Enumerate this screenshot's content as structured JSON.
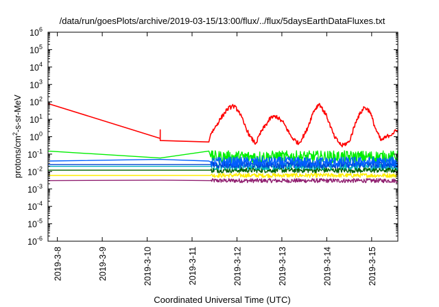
{
  "chart_data": {
    "type": "line",
    "title": "/data/run/goesPlots/archive/2019-03-15/13:00/flux/../flux/5daysEarthDataFluxes.txt",
    "xlabel": "Coordinated Universal Time (UTC)",
    "ylabel_prefix": "protons/cm",
    "ylabel_sup": "2",
    "ylabel_suffix": "-s-sr-MeV",
    "y_scale": "log",
    "x_range_days": [
      "2019-03-07 19:00",
      "2019-03-15 14:00"
    ],
    "ylim": [
      1e-06,
      1000000.0
    ],
    "grid": false,
    "legend": "none",
    "x_ticks": [
      "2019-3-8",
      "2019-3-9",
      "2019-3-10",
      "2019-3-11",
      "2019-3-12",
      "2019-3-13",
      "2019-3-14",
      "2019-3-15"
    ],
    "y_ticks": [
      {
        "base": "10",
        "exp": "-6"
      },
      {
        "base": "10",
        "exp": "-5"
      },
      {
        "base": "10",
        "exp": "-4"
      },
      {
        "base": "10",
        "exp": "-3"
      },
      {
        "base": "10",
        "exp": "-2"
      },
      {
        "base": "10",
        "exp": "-1"
      },
      {
        "base": "10",
        "exp": "0"
      },
      {
        "base": "10",
        "exp": "1"
      },
      {
        "base": "10",
        "exp": "2"
      },
      {
        "base": "10",
        "exp": "3"
      },
      {
        "base": "10",
        "exp": "4"
      },
      {
        "base": "10",
        "exp": "5"
      },
      {
        "base": "10",
        "exp": "6"
      }
    ],
    "series": [
      {
        "color": "#ff0000",
        "noise": 0.12,
        "points": [
          [
            "2019-03-07 19:00",
            80
          ],
          [
            "2019-03-10 07:00",
            0.8
          ],
          [
            "2019-03-10 07:00",
            2.5
          ],
          [
            "2019-03-10 07:00",
            0.6
          ],
          [
            "2019-03-11 09:00",
            0.5
          ],
          [
            "2019-03-11 10:00",
            1.5
          ],
          [
            "2019-03-11 12:00",
            3
          ],
          [
            "2019-03-11 15:00",
            10
          ],
          [
            "2019-03-11 19:00",
            40
          ],
          [
            "2019-03-11 22:00",
            60
          ],
          [
            "2019-03-12 01:00",
            30
          ],
          [
            "2019-03-12 04:00",
            5
          ],
          [
            "2019-03-12 07:00",
            1
          ],
          [
            "2019-03-12 10:00",
            0.4
          ],
          [
            "2019-03-12 13:00",
            2
          ],
          [
            "2019-03-12 18:00",
            12
          ],
          [
            "2019-03-12 21:00",
            15
          ],
          [
            "2019-03-13 01:00",
            6
          ],
          [
            "2019-03-13 05:00",
            1
          ],
          [
            "2019-03-13 09:00",
            0.4
          ],
          [
            "2019-03-13 13:00",
            2
          ],
          [
            "2019-03-13 17:00",
            30
          ],
          [
            "2019-03-13 20:00",
            80
          ],
          [
            "2019-03-14 00:00",
            15
          ],
          [
            "2019-03-14 04:00",
            1
          ],
          [
            "2019-03-14 08:00",
            0.3
          ],
          [
            "2019-03-14 12:00",
            0.5
          ],
          [
            "2019-03-14 16:00",
            10
          ],
          [
            "2019-03-14 20:00",
            50
          ],
          [
            "2019-03-14 23:00",
            30
          ],
          [
            "2019-03-15 02:00",
            3
          ],
          [
            "2019-03-15 05:00",
            0.6
          ],
          [
            "2019-03-15 08:00",
            1
          ],
          [
            "2019-03-15 11:00",
            1.5
          ],
          [
            "2019-03-15 14:00",
            2.5
          ]
        ]
      },
      {
        "color": "#00ee00",
        "noise": 0.35,
        "points": [
          [
            "2019-03-07 19:00",
            0.15
          ],
          [
            "2019-03-10 07:00",
            0.06
          ],
          [
            "2019-03-11 09:00",
            0.15
          ],
          [
            "2019-03-11 10:00",
            0.07
          ],
          [
            "2019-03-15 14:00",
            0.07
          ]
        ]
      },
      {
        "color": "#0060ff",
        "noise": 0.3,
        "points": [
          [
            "2019-03-07 19:00",
            0.04
          ],
          [
            "2019-03-10 07:00",
            0.05
          ],
          [
            "2019-03-11 09:00",
            0.04
          ],
          [
            "2019-03-11 10:00",
            0.035
          ],
          [
            "2019-03-15 14:00",
            0.035
          ]
        ]
      },
      {
        "color": "#00b0c0",
        "noise": 0.2,
        "points": [
          [
            "2019-03-07 19:00",
            0.02
          ],
          [
            "2019-03-10 07:00",
            0.02
          ],
          [
            "2019-03-11 09:00",
            0.02
          ],
          [
            "2019-03-11 10:00",
            0.02
          ],
          [
            "2019-03-15 14:00",
            0.02
          ]
        ]
      },
      {
        "color": "#0040d0",
        "noise": 0.2,
        "points": [
          [
            "2019-03-07 19:00",
            0.025
          ],
          [
            "2019-03-10 07:00",
            0.025
          ],
          [
            "2019-03-11 09:00",
            0.025
          ],
          [
            "2019-03-11 10:00",
            0.025
          ],
          [
            "2019-03-15 14:00",
            0.025
          ]
        ]
      },
      {
        "color": "#006000",
        "noise": 0.15,
        "points": [
          [
            "2019-03-07 19:00",
            0.012
          ],
          [
            "2019-03-10 07:00",
            0.012
          ],
          [
            "2019-03-11 09:00",
            0.012
          ],
          [
            "2019-03-11 10:00",
            0.012
          ],
          [
            "2019-03-15 14:00",
            0.012
          ]
        ]
      },
      {
        "color": "#ffee00",
        "noise": 0.12,
        "points": [
          [
            "2019-03-07 19:00",
            0.006
          ],
          [
            "2019-03-10 07:00",
            0.006
          ],
          [
            "2019-03-11 09:00",
            0.006
          ],
          [
            "2019-03-11 10:00",
            0.006
          ],
          [
            "2019-03-15 14:00",
            0.006
          ]
        ]
      },
      {
        "color": "#902070",
        "noise": 0.12,
        "points": [
          [
            "2019-03-07 19:00",
            0.003
          ],
          [
            "2019-03-10 07:00",
            0.0032
          ],
          [
            "2019-03-11 09:00",
            0.003
          ],
          [
            "2019-03-11 10:00",
            0.003
          ],
          [
            "2019-03-15 14:00",
            0.003
          ]
        ]
      }
    ]
  }
}
